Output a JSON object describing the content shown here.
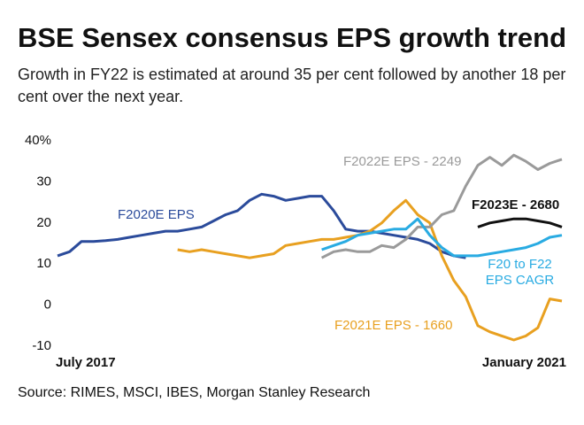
{
  "chart_data": {
    "type": "line",
    "title": "BSE Sensex consensus EPS growth trend",
    "subtitle": "Growth in FY22 is estimated at around 35 per cent followed by another 18 per cent over the next year.",
    "source": "Source: RIMES, MSCI, IBES, Morgan Stanley Research",
    "categories": [
      "July 2017",
      null,
      null,
      null,
      null,
      null,
      null,
      null,
      null,
      null,
      null,
      null,
      null,
      null,
      null,
      null,
      null,
      null,
      null,
      null,
      null,
      null,
      null,
      null,
      null,
      null,
      null,
      null,
      null,
      null,
      null,
      null,
      null,
      null,
      null,
      null,
      null,
      null,
      null,
      null,
      null,
      null,
      "January 2021"
    ],
    "ylim": [
      -10,
      40
    ],
    "yticks": [
      {
        "value": 40,
        "label": "40%"
      },
      30,
      20,
      10,
      0,
      -10
    ],
    "grid": false,
    "series": [
      {
        "name": "F2020E EPS",
        "color": "#2b4b9b",
        "values": [
          12,
          13,
          15.5,
          15.5,
          15.7,
          16,
          16.5,
          17,
          17.5,
          18,
          18,
          18.5,
          19,
          20.5,
          22,
          23,
          25.5,
          27,
          26.5,
          25.5,
          26,
          26.5,
          26.5,
          23,
          18.5,
          18,
          18,
          17.5,
          17,
          16.5,
          16,
          15,
          13,
          12,
          11.5,
          null,
          null,
          null,
          null,
          null,
          null,
          null,
          null
        ]
      },
      {
        "name": "F2021E EPS - 1660",
        "color": "#e8a020",
        "values": [
          null,
          null,
          null,
          null,
          null,
          null,
          null,
          null,
          null,
          null,
          13.5,
          13,
          13.5,
          13,
          12.5,
          12,
          11.5,
          12,
          12.5,
          14.5,
          15,
          15.5,
          16,
          16,
          16.5,
          17,
          18,
          20,
          23,
          25.5,
          22,
          20,
          12,
          6,
          2,
          -5,
          -6.5,
          -7.5,
          -8.5,
          -7.5,
          -5.5,
          1.5,
          1
        ]
      },
      {
        "name": "F2022E EPS - 2249",
        "color": "#9a9a9a",
        "values": [
          null,
          null,
          null,
          null,
          null,
          null,
          null,
          null,
          null,
          null,
          null,
          null,
          null,
          null,
          null,
          null,
          null,
          null,
          null,
          null,
          null,
          null,
          11.5,
          13,
          13.5,
          13,
          13,
          14.5,
          14,
          16,
          19,
          19,
          22,
          23,
          29,
          34,
          36,
          34,
          36.5,
          35,
          33,
          34.5,
          35.5
        ]
      },
      {
        "name": "F2023E - 2680",
        "color": "#111111",
        "values": [
          null,
          null,
          null,
          null,
          null,
          null,
          null,
          null,
          null,
          null,
          null,
          null,
          null,
          null,
          null,
          null,
          null,
          null,
          null,
          null,
          null,
          null,
          null,
          null,
          null,
          null,
          null,
          null,
          null,
          null,
          null,
          null,
          null,
          null,
          null,
          19,
          20,
          20.5,
          21,
          21,
          20.5,
          20,
          19
        ]
      },
      {
        "name": "F20 to F22 EPS CAGR",
        "color": "#29abe2",
        "values": [
          null,
          null,
          null,
          null,
          null,
          null,
          null,
          null,
          null,
          null,
          null,
          null,
          null,
          null,
          null,
          null,
          null,
          null,
          null,
          null,
          null,
          null,
          13.5,
          14.5,
          15.5,
          17,
          17.5,
          18,
          18.5,
          18.5,
          21,
          17,
          14,
          12,
          12,
          12,
          12.5,
          13,
          13.5,
          14,
          15,
          16.5,
          17
        ]
      }
    ]
  }
}
